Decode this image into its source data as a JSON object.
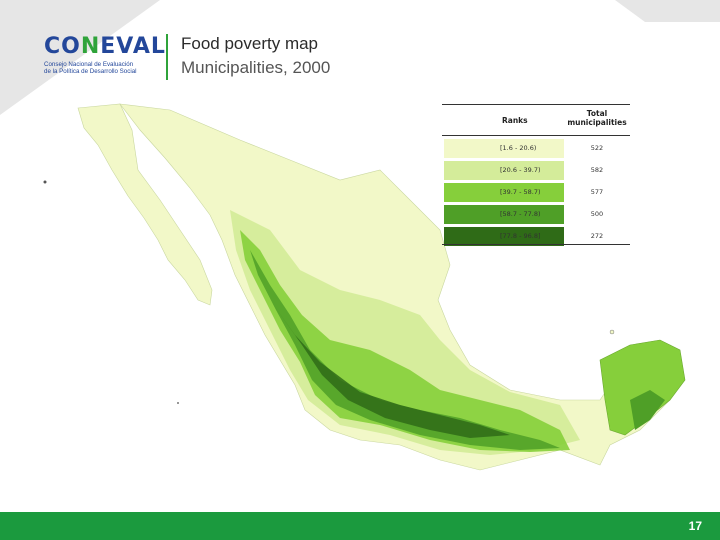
{
  "header": {
    "logo_word_a": "CO",
    "logo_word_accent": "N",
    "logo_word_b": "EVAL",
    "logo_sub_1": "Consejo Nacional de Evaluación",
    "logo_sub_2": "de la Política de Desarrollo Social",
    "title": "Food poverty map",
    "subtitle": "Municipalities, 2000"
  },
  "legend": {
    "col_ranks": "Ranks",
    "col_total_1": "Total",
    "col_total_2": "municipalities",
    "rows": [
      {
        "range": "[1.6 - 20.6)",
        "count": "522",
        "color": "#f2f8c8"
      },
      {
        "range": "[20.6 - 39.7)",
        "count": "582",
        "color": "#d4ec9a"
      },
      {
        "range": "[39.7 - 58.7)",
        "count": "577",
        "color": "#86cf3b"
      },
      {
        "range": "[58.7 - 77.8)",
        "count": "500",
        "color": "#4f9f27"
      },
      {
        "range": "[77.8 - 96.8]",
        "count": "272",
        "color": "#2f6b17"
      }
    ]
  },
  "footer": {
    "page_number": "17",
    "color": "#1b9a3e"
  }
}
